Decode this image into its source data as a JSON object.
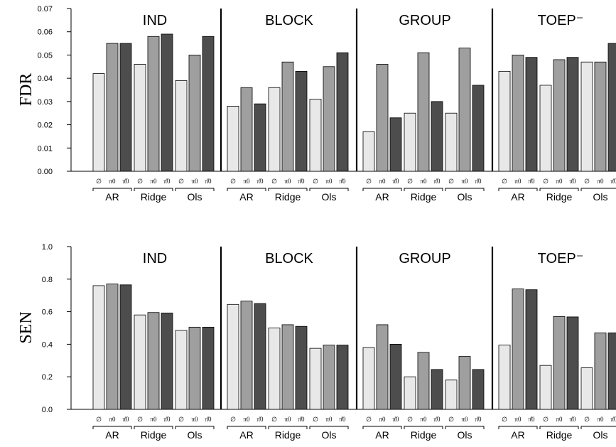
{
  "chart_data": [
    {
      "type": "bar",
      "ylabel": "FDR",
      "ylim": [
        0,
        0.07
      ],
      "yticks": [
        "0.00",
        "0.01",
        "0.02",
        "0.03",
        "0.04",
        "0.05",
        "0.06",
        "0.07"
      ],
      "bar_labels": [
        "∅",
        "π0",
        "π̂0"
      ],
      "groups": [
        "AR",
        "Ridge",
        "Ols"
      ],
      "colors": [
        "#e8e8e8",
        "#9f9f9f",
        "#4d4d4d"
      ],
      "panels": [
        {
          "title": "IND",
          "values": [
            0.042,
            0.055,
            0.055,
            0.046,
            0.058,
            0.059,
            0.039,
            0.05,
            0.058
          ]
        },
        {
          "title": "BLOCK",
          "values": [
            0.028,
            0.036,
            0.029,
            0.036,
            0.047,
            0.043,
            0.031,
            0.045,
            0.051
          ]
        },
        {
          "title": "GROUP",
          "values": [
            0.017,
            0.046,
            0.023,
            0.025,
            0.051,
            0.03,
            0.025,
            0.053,
            0.037
          ]
        },
        {
          "title": "TOEP⁻",
          "values": [
            0.043,
            0.05,
            0.049,
            0.037,
            0.048,
            0.049,
            0.047,
            0.047,
            0.055
          ]
        }
      ]
    },
    {
      "type": "bar",
      "ylabel": "SEN",
      "ylim": [
        0,
        1.0
      ],
      "yticks": [
        "0.0",
        "0.2",
        "0.4",
        "0.6",
        "0.8",
        "1.0"
      ],
      "bar_labels": [
        "∅",
        "π0",
        "π̂0"
      ],
      "groups": [
        "AR",
        "Ridge",
        "Ols"
      ],
      "colors": [
        "#e8e8e8",
        "#9f9f9f",
        "#4d4d4d"
      ],
      "panels": [
        {
          "title": "IND",
          "values": [
            0.76,
            0.77,
            0.765,
            0.58,
            0.595,
            0.592,
            0.485,
            0.505,
            0.505
          ]
        },
        {
          "title": "BLOCK",
          "values": [
            0.645,
            0.665,
            0.65,
            0.5,
            0.52,
            0.51,
            0.375,
            0.395,
            0.395
          ]
        },
        {
          "title": "GROUP",
          "values": [
            0.38,
            0.52,
            0.4,
            0.2,
            0.35,
            0.245,
            0.18,
            0.325,
            0.245
          ]
        },
        {
          "title": "TOEP⁻",
          "values": [
            0.395,
            0.74,
            0.735,
            0.27,
            0.57,
            0.568,
            0.255,
            0.47,
            0.47
          ]
        }
      ]
    }
  ]
}
